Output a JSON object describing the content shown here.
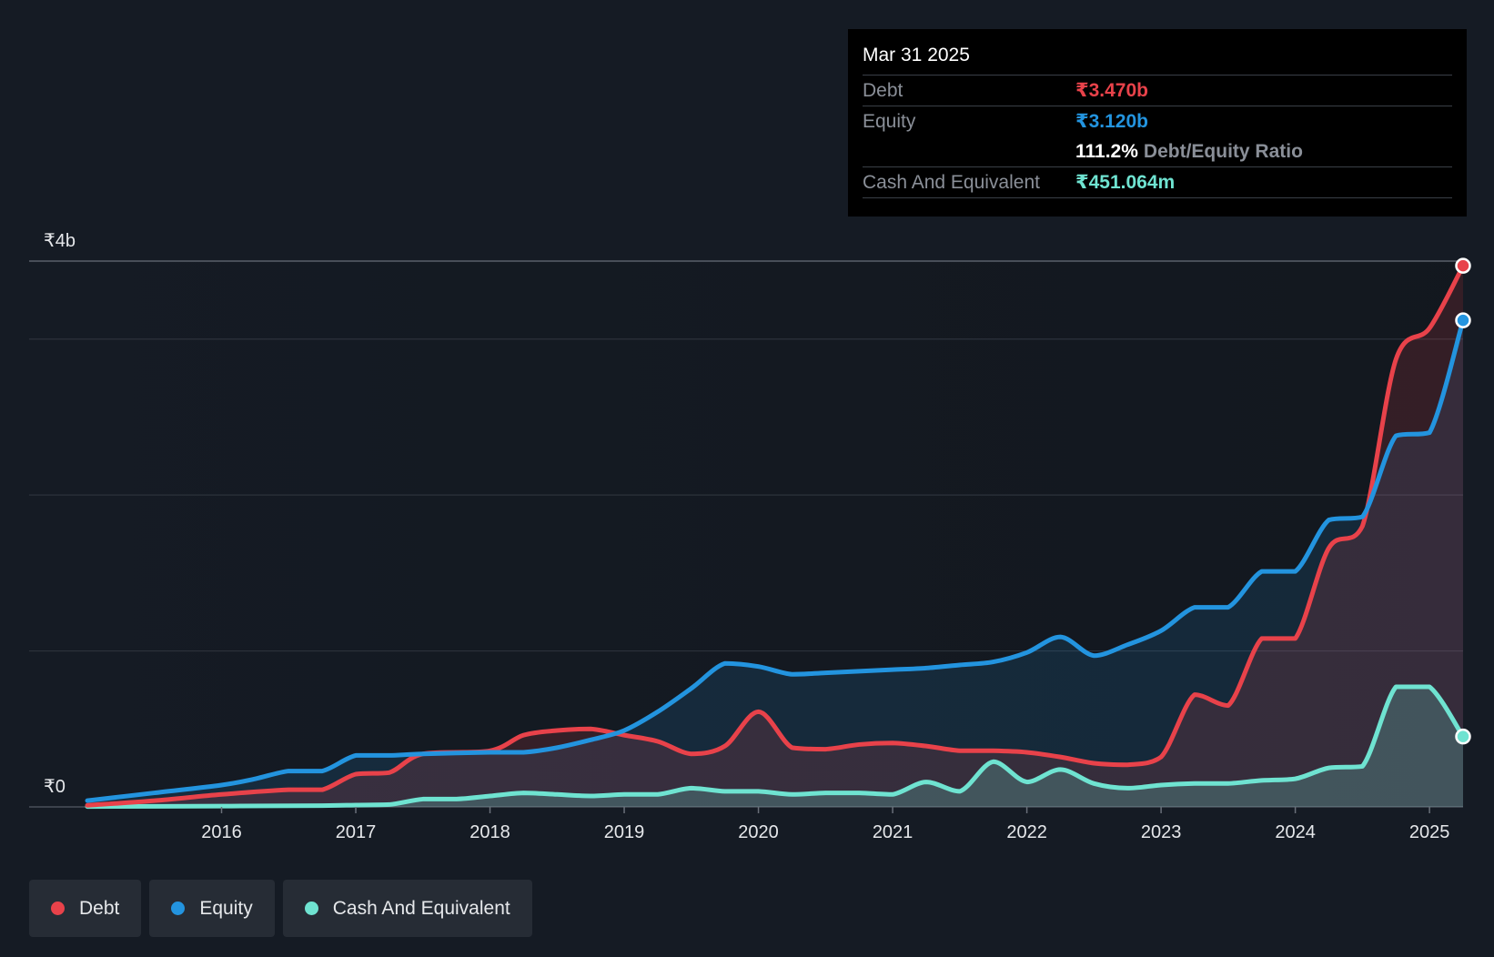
{
  "chart_data": {
    "type": "area",
    "title": "",
    "xlabel": "",
    "ylabel": "",
    "currency": "₹",
    "ylim": [
      0,
      3.5
    ],
    "y_ticks": [
      0,
      1,
      2,
      3,
      3.5
    ],
    "y_tick_labels": [
      {
        "value": 0,
        "label": "₹0"
      },
      {
        "value": 3.5,
        "label": "₹4b"
      }
    ],
    "x_ticks": [
      {
        "value": 2016,
        "label": "2016"
      },
      {
        "value": 2017,
        "label": "2017"
      },
      {
        "value": 2018,
        "label": "2018"
      },
      {
        "value": 2019,
        "label": "2019"
      },
      {
        "value": 2020,
        "label": "2020"
      },
      {
        "value": 2021,
        "label": "2021"
      },
      {
        "value": 2022,
        "label": "2022"
      },
      {
        "value": 2023,
        "label": "2023"
      },
      {
        "value": 2024,
        "label": "2024"
      },
      {
        "value": 2025,
        "label": "2025"
      }
    ],
    "xlim": [
      2014.6,
      2025.25
    ],
    "series": [
      {
        "name": "Debt",
        "color": "#e8424a",
        "unit": "₹ billions",
        "points": [
          [
            2015.0,
            0.01
          ],
          [
            2015.5,
            0.04
          ],
          [
            2016.0,
            0.08
          ],
          [
            2016.5,
            0.11
          ],
          [
            2016.75,
            0.11
          ],
          [
            2017.0,
            0.21
          ],
          [
            2017.25,
            0.22
          ],
          [
            2017.5,
            0.34
          ],
          [
            2018.0,
            0.36
          ],
          [
            2018.25,
            0.46
          ],
          [
            2018.5,
            0.49
          ],
          [
            2018.75,
            0.5
          ],
          [
            2019.0,
            0.46
          ],
          [
            2019.25,
            0.42
          ],
          [
            2019.5,
            0.34
          ],
          [
            2019.75,
            0.39
          ],
          [
            2020.0,
            0.61
          ],
          [
            2020.25,
            0.38
          ],
          [
            2020.5,
            0.37
          ],
          [
            2020.75,
            0.4
          ],
          [
            2021.0,
            0.41
          ],
          [
            2021.25,
            0.39
          ],
          [
            2021.5,
            0.36
          ],
          [
            2021.75,
            0.36
          ],
          [
            2022.0,
            0.35
          ],
          [
            2022.25,
            0.32
          ],
          [
            2022.5,
            0.28
          ],
          [
            2022.75,
            0.27
          ],
          [
            2023.0,
            0.32
          ],
          [
            2023.25,
            0.72
          ],
          [
            2023.5,
            0.65
          ],
          [
            2023.75,
            1.08
          ],
          [
            2024.0,
            1.08
          ],
          [
            2024.25,
            1.66
          ],
          [
            2024.5,
            1.8
          ],
          [
            2024.75,
            2.87
          ],
          [
            2025.0,
            3.07
          ],
          [
            2025.25,
            3.47
          ]
        ]
      },
      {
        "name": "Equity",
        "color": "#2394df",
        "unit": "₹ billions",
        "points": [
          [
            2015.0,
            0.04
          ],
          [
            2015.5,
            0.09
          ],
          [
            2016.0,
            0.14
          ],
          [
            2016.25,
            0.18
          ],
          [
            2016.5,
            0.23
          ],
          [
            2016.75,
            0.23
          ],
          [
            2017.0,
            0.33
          ],
          [
            2017.25,
            0.33
          ],
          [
            2017.5,
            0.34
          ],
          [
            2018.0,
            0.35
          ],
          [
            2018.25,
            0.35
          ],
          [
            2018.5,
            0.38
          ],
          [
            2018.75,
            0.43
          ],
          [
            2019.0,
            0.49
          ],
          [
            2019.25,
            0.61
          ],
          [
            2019.5,
            0.76
          ],
          [
            2019.75,
            0.92
          ],
          [
            2020.0,
            0.9
          ],
          [
            2020.25,
            0.85
          ],
          [
            2020.5,
            0.86
          ],
          [
            2020.75,
            0.87
          ],
          [
            2021.0,
            0.88
          ],
          [
            2021.25,
            0.89
          ],
          [
            2021.5,
            0.91
          ],
          [
            2021.75,
            0.93
          ],
          [
            2022.0,
            0.99
          ],
          [
            2022.25,
            1.09
          ],
          [
            2022.5,
            0.97
          ],
          [
            2022.75,
            1.04
          ],
          [
            2023.0,
            1.13
          ],
          [
            2023.25,
            1.28
          ],
          [
            2023.5,
            1.28
          ],
          [
            2023.75,
            1.51
          ],
          [
            2024.0,
            1.51
          ],
          [
            2024.25,
            1.84
          ],
          [
            2024.5,
            1.86
          ],
          [
            2024.75,
            2.38
          ],
          [
            2025.0,
            2.4
          ],
          [
            2025.25,
            3.12
          ]
        ]
      },
      {
        "name": "Cash And Equivalent",
        "color": "#6fe3d1",
        "unit": "₹ billions",
        "points": [
          [
            2015.0,
            0.002
          ],
          [
            2016.0,
            0.005
          ],
          [
            2016.75,
            0.008
          ],
          [
            2017.0,
            0.012
          ],
          [
            2017.25,
            0.015
          ],
          [
            2017.5,
            0.05
          ],
          [
            2017.75,
            0.05
          ],
          [
            2018.0,
            0.07
          ],
          [
            2018.25,
            0.09
          ],
          [
            2018.5,
            0.08
          ],
          [
            2018.75,
            0.07
          ],
          [
            2019.0,
            0.08
          ],
          [
            2019.25,
            0.08
          ],
          [
            2019.5,
            0.12
          ],
          [
            2019.75,
            0.1
          ],
          [
            2020.0,
            0.1
          ],
          [
            2020.25,
            0.08
          ],
          [
            2020.5,
            0.09
          ],
          [
            2020.75,
            0.09
          ],
          [
            2021.0,
            0.08
          ],
          [
            2021.25,
            0.16
          ],
          [
            2021.5,
            0.1
          ],
          [
            2021.75,
            0.29
          ],
          [
            2022.0,
            0.16
          ],
          [
            2022.25,
            0.24
          ],
          [
            2022.5,
            0.15
          ],
          [
            2022.75,
            0.12
          ],
          [
            2023.0,
            0.14
          ],
          [
            2023.25,
            0.15
          ],
          [
            2023.5,
            0.15
          ],
          [
            2023.75,
            0.17
          ],
          [
            2024.0,
            0.18
          ],
          [
            2024.25,
            0.25
          ],
          [
            2024.5,
            0.26
          ],
          [
            2024.75,
            0.77
          ],
          [
            2025.0,
            0.77
          ],
          [
            2025.25,
            0.451
          ]
        ]
      }
    ]
  },
  "tooltip": {
    "date": "Mar 31 2025",
    "debt_label": "Debt",
    "debt_value": "₹3.470b",
    "equity_label": "Equity",
    "equity_value": "₹3.120b",
    "ratio_value": "111.2%",
    "ratio_label": "Debt/Equity Ratio",
    "cash_label": "Cash And Equivalent",
    "cash_value": "₹451.064m"
  },
  "legend": {
    "debt": "Debt",
    "equity": "Equity",
    "cash": "Cash And Equivalent"
  },
  "colors": {
    "debt": "#e8424a",
    "equity": "#2394df",
    "cash": "#6fe3d1",
    "background": "#151b24"
  }
}
